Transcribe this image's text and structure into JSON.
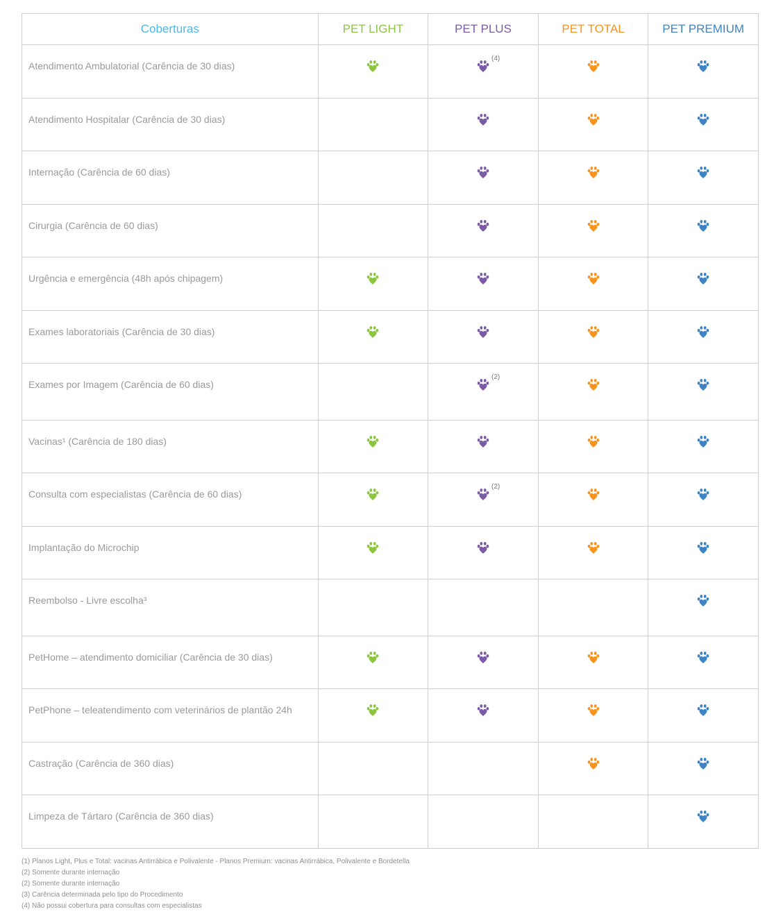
{
  "header": {
    "coverage_label": "Coberturas",
    "plans": [
      {
        "name": "PET LIGHT",
        "color": "#8cc63f"
      },
      {
        "name": "PET PLUS",
        "color": "#7b5aa6"
      },
      {
        "name": "PET TOTAL",
        "color": "#f7941d"
      },
      {
        "name": "PET PREMIUM",
        "color": "#3e84c5"
      }
    ],
    "coverage_label_color": "#4db8e6"
  },
  "rows": [
    {
      "label": "Atendimento Ambulatorial (Carência de 30 dias)",
      "marks": [
        true,
        true,
        true,
        true
      ],
      "notes": [
        "",
        "(4)",
        "",
        ""
      ]
    },
    {
      "label": "Atendimento Hospitalar (Carência de 30 dias)",
      "marks": [
        false,
        true,
        true,
        true
      ],
      "notes": [
        "",
        "",
        "",
        ""
      ]
    },
    {
      "label": "Internação (Carência de 60 dias)",
      "marks": [
        false,
        true,
        true,
        true
      ],
      "notes": [
        "",
        "",
        "",
        ""
      ]
    },
    {
      "label": "Cirurgia (Carência de 60 dias)",
      "marks": [
        false,
        true,
        true,
        true
      ],
      "notes": [
        "",
        "",
        "",
        ""
      ]
    },
    {
      "label": "Urgência e emergência (48h após chipagem)",
      "marks": [
        true,
        true,
        true,
        true
      ],
      "notes": [
        "",
        "",
        "",
        ""
      ]
    },
    {
      "label": "Exames laboratoriais (Carência de 30 dias)",
      "marks": [
        true,
        true,
        true,
        true
      ],
      "notes": [
        "",
        "",
        "",
        ""
      ]
    },
    {
      "label": "Exames por Imagem (Carência de 60 dias)",
      "marks": [
        false,
        true,
        true,
        true
      ],
      "notes": [
        "",
        "(2)",
        "",
        ""
      ]
    },
    {
      "label": "Vacinas¹ (Carência de 180 dias)",
      "marks": [
        true,
        true,
        true,
        true
      ],
      "notes": [
        "",
        "",
        "",
        ""
      ]
    },
    {
      "label": "Consulta com especialistas (Carência de 60 dias)",
      "marks": [
        true,
        true,
        true,
        true
      ],
      "notes": [
        "",
        "(2)",
        "",
        ""
      ]
    },
    {
      "label": "Implantação do Microchip",
      "marks": [
        true,
        true,
        true,
        true
      ],
      "notes": [
        "",
        "",
        "",
        ""
      ]
    },
    {
      "label": "Reembolso - Livre escolha³",
      "marks": [
        false,
        false,
        false,
        true
      ],
      "notes": [
        "",
        "",
        "",
        ""
      ]
    },
    {
      "label": "PetHome – atendimento domiciliar (Carência de 30 dias)",
      "marks": [
        true,
        true,
        true,
        true
      ],
      "notes": [
        "",
        "",
        "",
        ""
      ]
    },
    {
      "label": "PetPhone – teleatendimento com veterinários de plantão 24h",
      "marks": [
        true,
        true,
        true,
        true
      ],
      "notes": [
        "",
        "",
        "",
        ""
      ]
    },
    {
      "label": "Castração (Carência de 360 dias)",
      "marks": [
        false,
        false,
        true,
        true
      ],
      "notes": [
        "",
        "",
        "",
        ""
      ]
    },
    {
      "label": "Limpeza de Tártaro (Carência de 360 dias)",
      "marks": [
        false,
        false,
        false,
        true
      ],
      "notes": [
        "",
        "",
        "",
        ""
      ]
    }
  ],
  "footnotes": [
    "(1) Planos Light, Plus e Total: vacinas Antirrábica e Polivalente - Planos Premium: vacinas Antirrábica, Polivalente e Bordetella",
    "(2) Somente durante internação",
    "(2) Somente durante internação",
    "(3) Carência determinada pelo tipo do Procedimento",
    "(4) Não possui cobertura para consultas com especialistas"
  ],
  "icons": {
    "mark": "paw-icon"
  }
}
